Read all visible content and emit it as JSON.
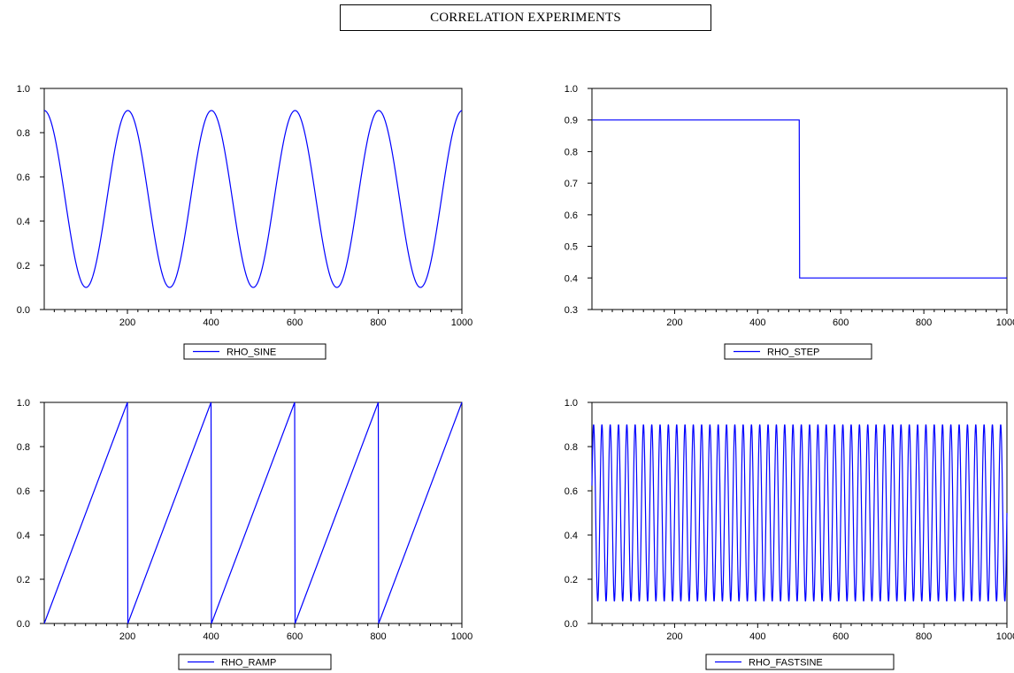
{
  "title": "CORRELATION EXPERIMENTS",
  "series_color": "#0000ff",
  "chart_data": [
    {
      "type": "line",
      "name": "RHO_SINE",
      "legend": "RHO_SINE",
      "xlim": [
        1,
        1000
      ],
      "xticks": [
        200,
        400,
        600,
        800,
        1000
      ],
      "ylim": [
        0.0,
        1.0
      ],
      "yticks": [
        0.0,
        0.2,
        0.4,
        0.6,
        0.8,
        1.0
      ],
      "ytick_labels": [
        "0.0",
        "0.2",
        "0.4",
        "0.6",
        "0.8",
        "1.0"
      ],
      "x": [
        1,
        50,
        100,
        150,
        200,
        250,
        300,
        350,
        400,
        450,
        500,
        550,
        600,
        650,
        700,
        750,
        800,
        850,
        900,
        950,
        1000
      ],
      "y": [
        0.9,
        0.5,
        0.1,
        0.5,
        0.9,
        0.5,
        0.1,
        0.5,
        0.9,
        0.5,
        0.1,
        0.5,
        0.9,
        0.5,
        0.1,
        0.5,
        0.9,
        0.5,
        0.1,
        0.5,
        0.9
      ],
      "description": "0.5 + 0.4*cos(2*pi*t/200)"
    },
    {
      "type": "line",
      "name": "RHO_STEP",
      "legend": "RHO_STEP",
      "xlim": [
        1,
        1000
      ],
      "xticks": [
        200,
        400,
        600,
        800,
        1000
      ],
      "ylim": [
        0.3,
        1.0
      ],
      "yticks": [
        0.3,
        0.4,
        0.5,
        0.6,
        0.7,
        0.8,
        0.9,
        1.0
      ],
      "ytick_labels": [
        "0.3",
        "0.4",
        "0.5",
        "0.6",
        "0.7",
        "0.8",
        "0.9",
        "1.0"
      ],
      "x": [
        1,
        500,
        501,
        1000
      ],
      "y": [
        0.9,
        0.9,
        0.4,
        0.4
      ]
    },
    {
      "type": "line",
      "name": "RHO_RAMP",
      "legend": "RHO_RAMP",
      "xlim": [
        1,
        1000
      ],
      "xticks": [
        200,
        400,
        600,
        800,
        1000
      ],
      "ylim": [
        0.0,
        1.0
      ],
      "yticks": [
        0.0,
        0.2,
        0.4,
        0.6,
        0.8,
        1.0
      ],
      "ytick_labels": [
        "0.0",
        "0.2",
        "0.4",
        "0.6",
        "0.8",
        "1.0"
      ],
      "x": [
        1,
        200,
        201,
        400,
        401,
        600,
        601,
        800,
        801,
        1000
      ],
      "y": [
        0.0,
        1.0,
        0.0,
        1.0,
        0.0,
        1.0,
        0.0,
        1.0,
        0.0,
        1.0
      ]
    },
    {
      "type": "line",
      "name": "RHO_FASTSINE",
      "legend": "RHO_FASTSINE",
      "xlim": [
        1,
        1000
      ],
      "xticks": [
        200,
        400,
        600,
        800,
        1000
      ],
      "ylim": [
        0.0,
        1.0
      ],
      "yticks": [
        0.0,
        0.2,
        0.4,
        0.6,
        0.8,
        1.0
      ],
      "ytick_labels": [
        "0.0",
        "0.2",
        "0.4",
        "0.6",
        "0.8",
        "1.0"
      ],
      "period": 20,
      "amplitude": 0.4,
      "center": 0.5,
      "description": "0.5 + 0.4*sin(2*pi*t/20), oscillating between 0.1 and 0.9"
    }
  ]
}
